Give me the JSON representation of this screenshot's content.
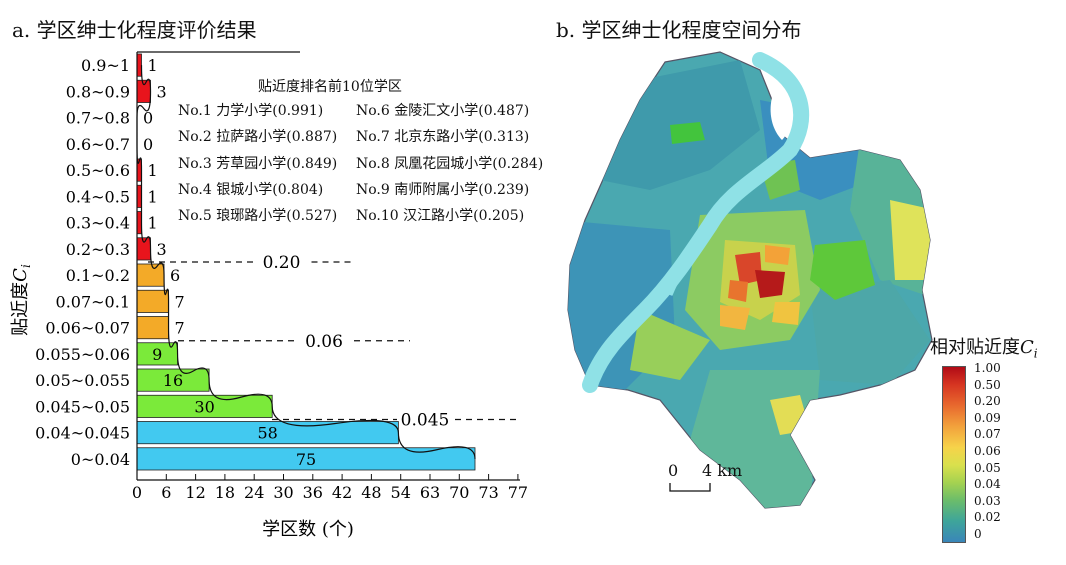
{
  "panel_a": {
    "title": "a. 学区绅士化程度评价结果",
    "top10": {
      "title": "贴近度排名前10位学区",
      "items": [
        "No.1 力学小学(0.991)",
        "No.2 拉萨路小学(0.887)",
        "No.3 芳草园小学(0.849)",
        "No.4 银城小学(0.804)",
        "No.5 琅琊路小学(0.527)",
        "No.6 金陵汇文小学(0.487)",
        "No.7 北京东路小学(0.313)",
        "No.8 凤凰花园城小学(0.284)",
        "No.9 南师附属小学(0.239)",
        "No.10 汉江路小学(0.205)"
      ]
    }
  },
  "panel_b": {
    "title": "b. 学区绅士化程度空间分布",
    "legend_title_prefix": "相对贴近度",
    "legend_title_var": "C",
    "legend_title_sub": "i",
    "legend_ticks": [
      "1.00",
      "0.50",
      "0.20",
      "0.09",
      "0.07",
      "0.06",
      "0.05",
      "0.04",
      "0.03",
      "0.02",
      "0"
    ],
    "scale_left": "0",
    "scale_right": "4 km"
  },
  "chart_data": {
    "type": "bar",
    "orientation": "horizontal",
    "categories": [
      "0.9~1",
      "0.8~0.9",
      "0.7~0.8",
      "0.6~0.7",
      "0.5~0.6",
      "0.4~0.5",
      "0.3~0.4",
      "0.2~0.3",
      "0.1~0.2",
      "0.07~0.1",
      "0.06~0.07",
      "0.055~0.06",
      "0.05~0.055",
      "0.045~0.05",
      "0.04~0.045",
      "0~0.04"
    ],
    "values": [
      1,
      3,
      0,
      0,
      1,
      1,
      1,
      3,
      6,
      7,
      7,
      9,
      16,
      30,
      58,
      75
    ],
    "bar_colors": [
      "#e8141c",
      "#e8141c",
      "#e8141c",
      "#e8141c",
      "#e8141c",
      "#e8141c",
      "#e8141c",
      "#e8141c",
      "#f3aa28",
      "#f3aa28",
      "#f3aa28",
      "#7bea3a",
      "#7bea3a",
      "#7bea3a",
      "#42c9f0",
      "#42c9f0"
    ],
    "xlabel": "学区数 (个)",
    "ylabel_prefix": "贴近度",
    "ylabel_var": "C",
    "ylabel_sub": "i",
    "xticks": [
      "0",
      "6",
      "12",
      "18",
      "24",
      "30",
      "36",
      "42",
      "48",
      "54",
      "63",
      "70",
      "73",
      "77"
    ],
    "thresholds": [
      {
        "label": "0.20",
        "after_category": "0.2~0.3"
      },
      {
        "label": "0.06",
        "after_category": "0.06~0.07"
      },
      {
        "label": "0.045",
        "after_category": "0.045~0.05"
      }
    ]
  }
}
